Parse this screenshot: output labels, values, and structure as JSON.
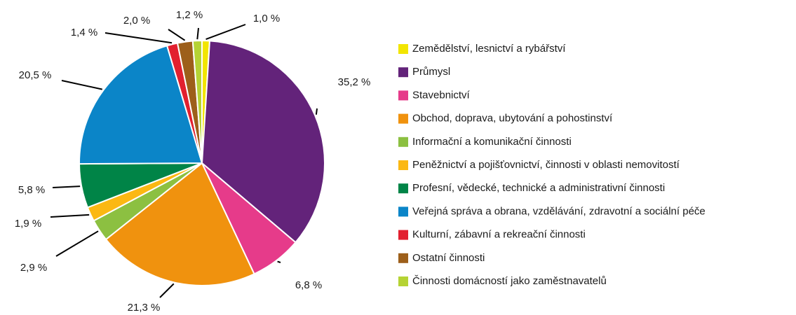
{
  "chart_data": {
    "type": "pie",
    "categories": [
      "Zemědělství, lesnictví a rybářství",
      "Průmysl",
      "Stavebnictví",
      "Obchod, doprava, ubytování a pohostinství",
      "Informační a komunikační činnosti",
      "Peněžnictví a pojišťovnictví, činnosti v oblasti nemovitostí",
      "Profesní, vědecké, technické a administrativní činnosti",
      "Veřejná správa a obrana, vzdělávání, zdravotní a sociální péče",
      "Kulturní, zábavní a rekreační činnosti",
      "Ostatní činnosti",
      "Činnosti domácností jako zaměstnavatelů"
    ],
    "values": [
      1.0,
      35.2,
      6.8,
      21.3,
      2.9,
      1.9,
      5.8,
      20.5,
      1.4,
      2.0,
      1.2
    ],
    "value_labels": [
      "1,0 %",
      "35,2 %",
      "6,8 %",
      "21,3 %",
      "2,9 %",
      "1,9 %",
      "5,8 %",
      "20,5 %",
      "1,4 %",
      "2,0 %",
      "1,2 %"
    ],
    "colors": [
      "#f2e500",
      "#63237a",
      "#e63b8a",
      "#f0920e",
      "#8cc041",
      "#fbb813",
      "#008447",
      "#0b85c8",
      "#e2202f",
      "#9d5f1a",
      "#b5d334"
    ],
    "legend": "right"
  }
}
